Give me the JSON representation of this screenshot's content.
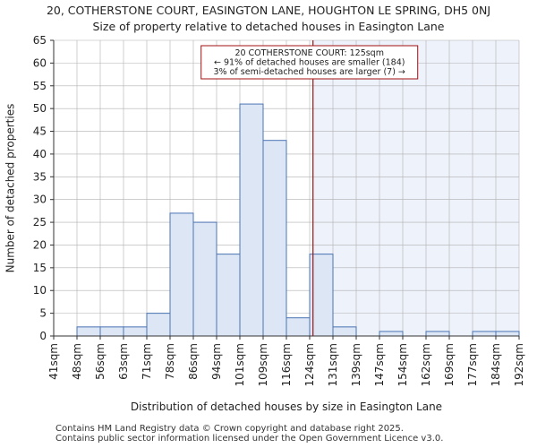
{
  "page": {
    "title_line1": "20, COTHERSTONE COURT, EASINGTON LANE, HOUGHTON LE SPRING, DH5 0NJ",
    "title_line2": "Size of property relative to detached houses in Easington Lane",
    "footer_line1": "Contains HM Land Registry data © Crown copyright and database right 2025.",
    "footer_line2": "Contains public sector information licensed under the Open Government Licence v3.0."
  },
  "chart_data": {
    "type": "bar",
    "xlabel": "Distribution of detached houses by size in Easington Lane",
    "ylabel": "Number of detached properties",
    "ylim": [
      0,
      65
    ],
    "yticks": [
      0,
      5,
      10,
      15,
      20,
      25,
      30,
      35,
      40,
      45,
      50,
      55,
      60,
      65
    ],
    "bin_edges": [
      "41sqm",
      "48sqm",
      "56sqm",
      "63sqm",
      "71sqm",
      "78sqm",
      "86sqm",
      "94sqm",
      "101sqm",
      "109sqm",
      "116sqm",
      "124sqm",
      "131sqm",
      "139sqm",
      "147sqm",
      "154sqm",
      "162sqm",
      "169sqm",
      "177sqm",
      "184sqm",
      "192sqm"
    ],
    "values": [
      0,
      2,
      2,
      2,
      5,
      27,
      25,
      18,
      51,
      43,
      4,
      18,
      2,
      0,
      1,
      0,
      1,
      0,
      1,
      1
    ],
    "marker": {
      "value_sqm": 125,
      "line1": "20 COTHERSTONE COURT: 125sqm",
      "line2": "← 91% of detached houses are smaller (184)",
      "line3": "3% of semi-detached houses are larger (7) →"
    },
    "colors": {
      "bar_fill": "#dce6f4",
      "bar_stroke": "#4a74b4",
      "highlight_region": "#eef2fb",
      "marker_line": "#a01010",
      "grid": "#b0b0b0",
      "axis": "#333333"
    },
    "grid": true
  }
}
